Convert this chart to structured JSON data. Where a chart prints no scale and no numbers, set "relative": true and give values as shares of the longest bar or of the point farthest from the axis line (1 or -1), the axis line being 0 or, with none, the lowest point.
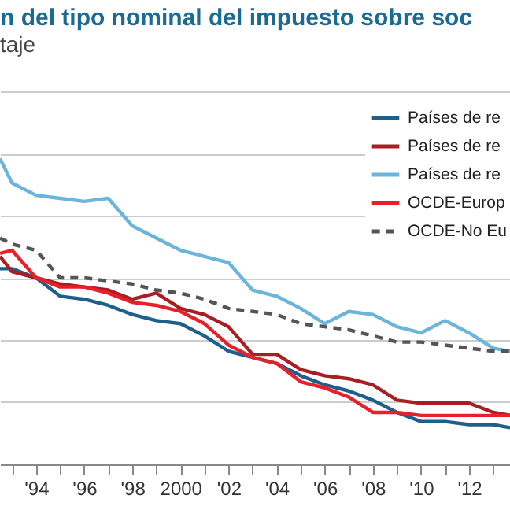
{
  "chart_data": {
    "type": "line",
    "title": "n del tipo nominal del impuesto sobre soc",
    "subtitle": "taje",
    "relative": true,
    "grid": "y",
    "legend": "top right",
    "x": [
      1992.5,
      1993,
      1994,
      1995,
      1996,
      1997,
      1998,
      1999,
      2000,
      2001,
      2002,
      2003,
      2004,
      2005,
      2006,
      2007,
      2008,
      2009,
      2010,
      2011,
      2012,
      2013,
      2013.7
    ],
    "xlim": [
      1992.5,
      2013.7
    ],
    "xticks": [
      {
        "value": 1993,
        "label": null
      },
      {
        "value": 1994,
        "label": "'94"
      },
      {
        "value": 1995,
        "label": null
      },
      {
        "value": 1996,
        "label": "'96"
      },
      {
        "value": 1997,
        "label": null
      },
      {
        "value": 1998,
        "label": "'98"
      },
      {
        "value": 1999,
        "label": null
      },
      2000,
      {
        "value": 2001,
        "label": null
      },
      {
        "value": 2002,
        "label": "'02"
      },
      {
        "value": 2003,
        "label": null
      },
      {
        "value": 2004,
        "label": "'04"
      },
      {
        "value": 2005,
        "label": null
      },
      {
        "value": 2006,
        "label": "'06"
      },
      {
        "value": 2007,
        "label": null
      },
      {
        "value": 2008,
        "label": "'08"
      },
      {
        "value": 2009,
        "label": null
      },
      {
        "value": 2010,
        "label": "'10"
      },
      {
        "value": 2011,
        "label": null
      },
      {
        "value": 2012,
        "label": "'12"
      },
      {
        "value": 2013,
        "label": null
      }
    ],
    "series": [
      {
        "name": "Países de re",
        "color": "#1f5f8b",
        "values": [
          0.64,
          0.64,
          0.61,
          0.55,
          0.54,
          0.52,
          0.49,
          0.47,
          0.46,
          0.42,
          0.37,
          0.35,
          0.33,
          0.29,
          0.26,
          0.24,
          0.21,
          0.17,
          0.14,
          0.14,
          0.13,
          0.13,
          0.12
        ]
      },
      {
        "name": "Países de re",
        "color": "#a81e22",
        "values": [
          0.68,
          0.63,
          0.61,
          0.59,
          0.58,
          0.57,
          0.54,
          0.56,
          0.51,
          0.49,
          0.45,
          0.36,
          0.36,
          0.31,
          0.29,
          0.28,
          0.26,
          0.21,
          0.2,
          0.2,
          0.2,
          0.17,
          0.16
        ]
      },
      {
        "name": "Países de re",
        "color": "#6bb5dd",
        "values": [
          1.0,
          0.92,
          0.88,
          0.87,
          0.86,
          0.87,
          0.78,
          0.74,
          0.7,
          0.68,
          0.66,
          0.57,
          0.55,
          0.51,
          0.46,
          0.5,
          0.49,
          0.45,
          0.43,
          0.47,
          0.43,
          0.38,
          0.37
        ]
      },
      {
        "name": "OCDE-Europ",
        "color": "#e8202a",
        "values": [
          0.69,
          0.7,
          0.61,
          0.58,
          0.58,
          0.56,
          0.53,
          0.52,
          0.5,
          0.46,
          0.39,
          0.35,
          0.33,
          0.27,
          0.25,
          0.22,
          0.17,
          0.17,
          0.16,
          0.16,
          0.16,
          0.16,
          0.16
        ]
      },
      {
        "name": "OCDE-No Eu",
        "color": "#555555",
        "line_style": "dashed",
        "values": [
          0.74,
          0.72,
          0.7,
          0.61,
          0.61,
          0.6,
          0.59,
          0.57,
          0.56,
          0.54,
          0.51,
          0.5,
          0.49,
          0.46,
          0.45,
          0.44,
          0.42,
          0.4,
          0.4,
          0.39,
          0.38,
          0.37,
          0.37
        ]
      }
    ]
  }
}
